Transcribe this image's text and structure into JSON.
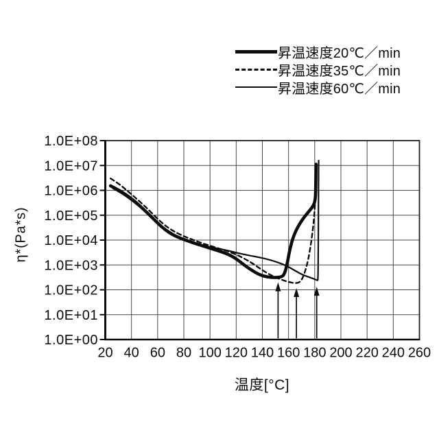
{
  "legend": {
    "position": "top-right",
    "items": [
      {
        "label": "昇温速度20℃／min",
        "style": "thick-solid"
      },
      {
        "label": "昇温速度35℃／min",
        "style": "dashed"
      },
      {
        "label": "昇温速度60℃／min",
        "style": "thin-solid"
      }
    ]
  },
  "chart_data": {
    "type": "line",
    "title": "",
    "xlabel": "温度[°C]",
    "ylabel": "η*(Pa*s)",
    "x_axis": {
      "min": 20,
      "max": 260,
      "tick_step": 20,
      "ticks": [
        20,
        40,
        60,
        80,
        100,
        120,
        140,
        160,
        180,
        200,
        220,
        240,
        260
      ],
      "tick_labels": [
        "20",
        "40",
        "60",
        "80",
        "100",
        "120",
        "140",
        "160",
        "180",
        "200",
        "220",
        "240",
        "260"
      ],
      "grid": true
    },
    "y_axis": {
      "scale": "log10",
      "min_exponent": 0,
      "max_exponent": 8,
      "tick_labels": [
        "1.0E+00",
        "1.0E+01",
        "1.0E+02",
        "1.0E+03",
        "1.0E+04",
        "1.0E+05",
        "1.0E+06",
        "1.0E+07",
        "1.0E+08"
      ],
      "grid": true
    },
    "series": [
      {
        "id": "heating-rate-20",
        "name": "昇温速度20℃／min",
        "style": {
          "width": 4.6,
          "dash": null
        },
        "points_T_log10eta": [
          [
            24,
            6.18
          ],
          [
            30,
            6.02
          ],
          [
            36,
            5.82
          ],
          [
            42,
            5.58
          ],
          [
            48,
            5.3
          ],
          [
            54,
            5.0
          ],
          [
            60,
            4.68
          ],
          [
            66,
            4.4
          ],
          [
            72,
            4.2
          ],
          [
            78,
            4.06
          ],
          [
            84,
            3.95
          ],
          [
            90,
            3.84
          ],
          [
            96,
            3.74
          ],
          [
            102,
            3.64
          ],
          [
            108,
            3.54
          ],
          [
            114,
            3.43
          ],
          [
            120,
            3.25
          ],
          [
            126,
            3.0
          ],
          [
            132,
            2.78
          ],
          [
            138,
            2.6
          ],
          [
            144,
            2.51
          ],
          [
            150,
            2.49
          ],
          [
            155,
            2.52
          ],
          [
            157,
            2.65
          ],
          [
            159,
            3.05
          ],
          [
            161,
            3.65
          ],
          [
            164,
            4.2
          ],
          [
            168,
            4.62
          ],
          [
            172,
            4.93
          ],
          [
            176,
            5.18
          ],
          [
            179,
            5.38
          ],
          [
            180.5,
            5.62
          ],
          [
            180.8,
            6.2
          ],
          [
            181,
            7.05
          ]
        ]
      },
      {
        "id": "heating-rate-35",
        "name": "昇温速度35℃／min",
        "style": {
          "width": 2.4,
          "dash": "6 4.5"
        },
        "points_T_log10eta": [
          [
            24,
            6.48
          ],
          [
            30,
            6.28
          ],
          [
            36,
            6.02
          ],
          [
            42,
            5.75
          ],
          [
            48,
            5.47
          ],
          [
            54,
            5.17
          ],
          [
            60,
            4.85
          ],
          [
            66,
            4.57
          ],
          [
            72,
            4.36
          ],
          [
            78,
            4.2
          ],
          [
            84,
            4.07
          ],
          [
            90,
            3.95
          ],
          [
            96,
            3.84
          ],
          [
            102,
            3.74
          ],
          [
            108,
            3.64
          ],
          [
            114,
            3.54
          ],
          [
            120,
            3.42
          ],
          [
            126,
            3.26
          ],
          [
            132,
            3.08
          ],
          [
            138,
            2.86
          ],
          [
            144,
            2.66
          ],
          [
            150,
            2.5
          ],
          [
            156,
            2.38
          ],
          [
            161,
            2.3
          ],
          [
            166,
            2.26
          ],
          [
            169,
            2.32
          ],
          [
            171,
            2.5
          ],
          [
            173,
            2.8
          ],
          [
            175,
            3.2
          ],
          [
            177,
            3.8
          ],
          [
            178.5,
            4.4
          ],
          [
            179.5,
            4.9
          ],
          [
            180.3,
            5.5
          ],
          [
            180.8,
            6.3
          ],
          [
            181,
            6.9
          ]
        ]
      },
      {
        "id": "heating-rate-60",
        "name": "昇温速度60℃／min",
        "style": {
          "width": 2.2,
          "dash": null
        },
        "points_T_log10eta": [
          [
            26,
            6.07
          ],
          [
            32,
            5.9
          ],
          [
            38,
            5.68
          ],
          [
            44,
            5.44
          ],
          [
            50,
            5.17
          ],
          [
            56,
            4.88
          ],
          [
            62,
            4.6
          ],
          [
            68,
            4.37
          ],
          [
            74,
            4.18
          ],
          [
            80,
            4.03
          ],
          [
            86,
            3.92
          ],
          [
            92,
            3.82
          ],
          [
            98,
            3.74
          ],
          [
            104,
            3.68
          ],
          [
            110,
            3.62
          ],
          [
            116,
            3.55
          ],
          [
            122,
            3.47
          ],
          [
            128,
            3.4
          ],
          [
            134,
            3.34
          ],
          [
            140,
            3.28
          ],
          [
            146,
            3.2
          ],
          [
            152,
            3.1
          ],
          [
            158,
            2.98
          ],
          [
            164,
            2.8
          ],
          [
            170,
            2.62
          ],
          [
            175,
            2.52
          ],
          [
            179,
            2.45
          ],
          [
            182,
            2.38
          ],
          [
            182.5,
            2.38
          ],
          [
            182.7,
            3.5
          ],
          [
            182.8,
            5.0
          ],
          [
            182.9,
            6.3
          ],
          [
            183,
            7.2
          ]
        ]
      }
    ],
    "annotations": {
      "arrows": [
        {
          "T": 152,
          "tip_log10": 2.3,
          "base_log10": 0.05,
          "meaning": "minimum viscosity, 20℃/min"
        },
        {
          "T": 166,
          "tip_log10": 2.07,
          "base_log10": 0.05,
          "meaning": "minimum viscosity, 35℃/min"
        },
        {
          "T": 181.5,
          "tip_log10": 2.12,
          "base_log10": 0.05,
          "meaning": "minimum viscosity, 60℃/min"
        }
      ]
    },
    "colors": {
      "line": "#0c0c0c",
      "grid": "#474747",
      "border": "#1e1e1e",
      "background": "#ffffff"
    }
  }
}
